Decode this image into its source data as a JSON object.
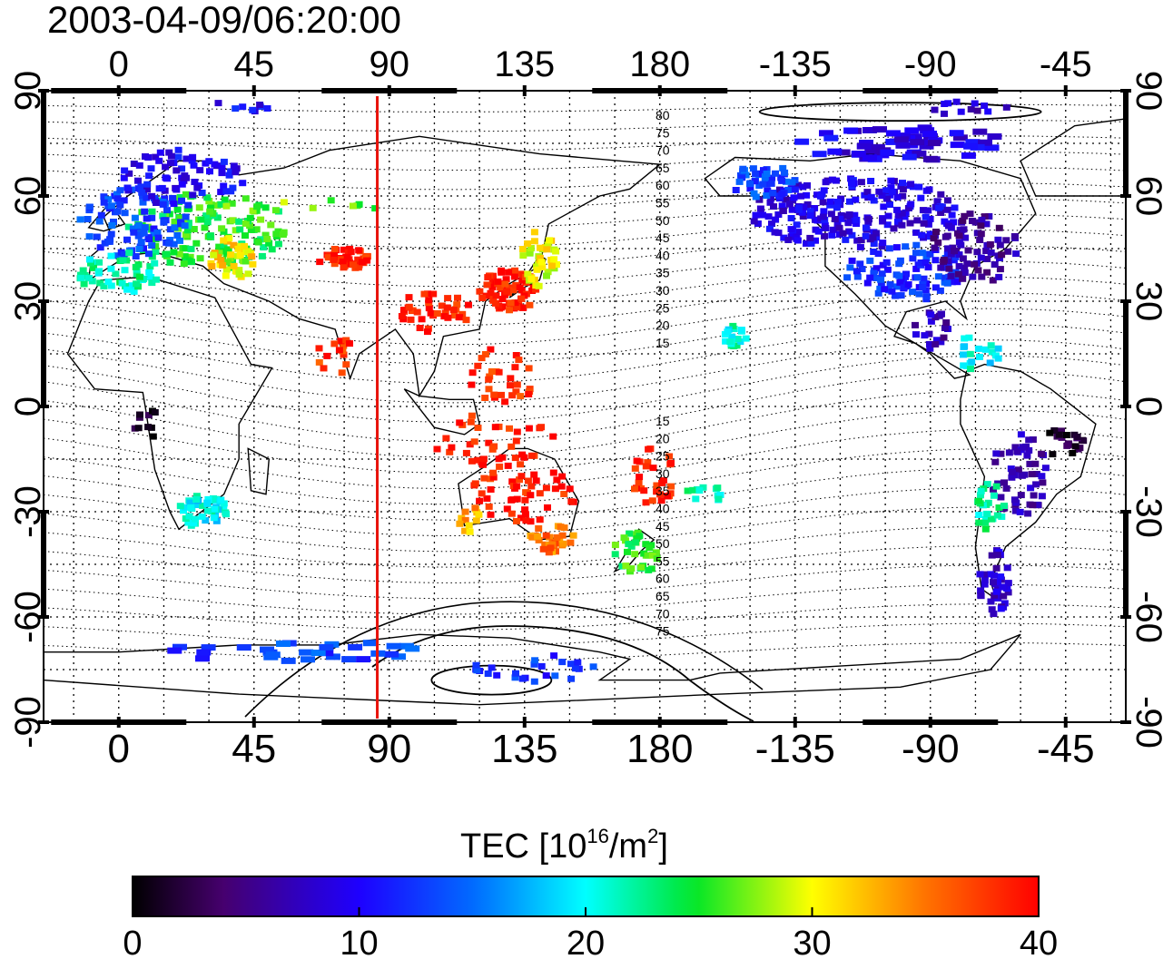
{
  "title": "2003-04-09/06:20:00",
  "lon_ticks": [
    "0",
    "45",
    "90",
    "135",
    "180",
    "-135",
    "-90",
    "-45"
  ],
  "lat_ticks_left": [
    "90",
    "60",
    "30",
    "0",
    "-30",
    "-60",
    "-90"
  ],
  "lat_ticks_right": [
    "90",
    "60",
    "30",
    "0",
    "-30",
    "-60",
    "-90"
  ],
  "contour_labels_north": [
    "80",
    "75",
    "70",
    "65",
    "60",
    "55",
    "50",
    "45",
    "40",
    "35",
    "30",
    "25",
    "20",
    "15"
  ],
  "contour_labels_south": [
    "15",
    "20",
    "25",
    "30",
    "35",
    "40",
    "45",
    "50",
    "55",
    "60",
    "65",
    "70",
    "75"
  ],
  "colorbar": {
    "label_main": "TEC  [10",
    "label_sup1": "16",
    "label_mid": "/m",
    "label_sup2": "2",
    "label_end": "]",
    "ticks": [
      "0",
      "10",
      "20",
      "30",
      "40"
    ],
    "min": 0,
    "max": 40
  },
  "terminator_longitude": 86,
  "colors": {
    "terminator": "#e8130b",
    "frame": "#000000"
  },
  "chart_data": {
    "type": "heatmap",
    "title": "2003-04-09/06:20:00",
    "x_range_deg": [
      -25,
      335
    ],
    "y_range_deg": [
      -90,
      90
    ],
    "colorbar_range": [
      0,
      40
    ],
    "regions": [
      {
        "lon": 30,
        "lat": 50,
        "rx": 28,
        "ry": 11,
        "v": 25,
        "n": 140
      },
      {
        "lon": 5,
        "lat": 52,
        "rx": 18,
        "ry": 10,
        "v": 13,
        "n": 90
      },
      {
        "lon": 20,
        "lat": 65,
        "rx": 22,
        "ry": 8,
        "v": 10,
        "n": 80
      },
      {
        "lon": 0,
        "lat": 38,
        "rx": 14,
        "ry": 6,
        "v": 22,
        "n": 50
      },
      {
        "lon": 38,
        "lat": 42,
        "rx": 8,
        "ry": 6,
        "v": 31,
        "n": 35
      },
      {
        "lon": 75,
        "lat": 42,
        "rx": 9,
        "ry": 3,
        "v": 39,
        "n": 45
      },
      {
        "lon": 60,
        "lat": 55,
        "rx": 30,
        "ry": 4,
        "v": 27,
        "n": 14
      },
      {
        "lon": 130,
        "lat": 33,
        "rx": 10,
        "ry": 6,
        "v": 39,
        "n": 70
      },
      {
        "lon": 140,
        "lat": 42,
        "rx": 6,
        "ry": 8,
        "v": 30,
        "n": 40
      },
      {
        "lon": 105,
        "lat": 27,
        "rx": 12,
        "ry": 6,
        "v": 39,
        "n": 40
      },
      {
        "lon": 128,
        "lat": 10,
        "rx": 12,
        "ry": 10,
        "v": 38,
        "n": 30
      },
      {
        "lon": 72,
        "lat": 15,
        "rx": 6,
        "ry": 6,
        "v": 38,
        "n": 14
      },
      {
        "lon": 125,
        "lat": -10,
        "rx": 20,
        "ry": 8,
        "v": 39,
        "n": 40
      },
      {
        "lon": 135,
        "lat": -25,
        "rx": 18,
        "ry": 8,
        "v": 39,
        "n": 50
      },
      {
        "lon": 144,
        "lat": -38,
        "rx": 8,
        "ry": 4,
        "v": 35,
        "n": 30
      },
      {
        "lon": 116,
        "lat": -32,
        "rx": 4,
        "ry": 4,
        "v": 33,
        "n": 12
      },
      {
        "lon": 172,
        "lat": -42,
        "rx": 8,
        "ry": 6,
        "v": 25,
        "n": 35
      },
      {
        "lon": 178,
        "lat": -20,
        "rx": 8,
        "ry": 8,
        "v": 39,
        "n": 30
      },
      {
        "lon": 195,
        "lat": -25,
        "rx": 6,
        "ry": 3,
        "v": 22,
        "n": 12
      },
      {
        "lon": 205,
        "lat": 20,
        "rx": 4,
        "ry": 3,
        "v": 21,
        "n": 18
      },
      {
        "lon": 245,
        "lat": 55,
        "rx": 35,
        "ry": 10,
        "v": 9,
        "n": 220
      },
      {
        "lon": 262,
        "lat": 38,
        "rx": 20,
        "ry": 8,
        "v": 12,
        "n": 100
      },
      {
        "lon": 285,
        "lat": 45,
        "rx": 15,
        "ry": 10,
        "v": 6,
        "n": 80
      },
      {
        "lon": 260,
        "lat": 75,
        "rx": 35,
        "ry": 5,
        "v": 9,
        "n": 60
      },
      {
        "lon": 215,
        "lat": 64,
        "rx": 12,
        "ry": 5,
        "v": 13,
        "n": 50
      },
      {
        "lon": 270,
        "lat": 22,
        "rx": 6,
        "ry": 6,
        "v": 7,
        "n": 20
      },
      {
        "lon": 285,
        "lat": 15,
        "rx": 8,
        "ry": 5,
        "v": 20,
        "n": 20
      },
      {
        "lon": 300,
        "lat": -20,
        "rx": 10,
        "ry": 12,
        "v": 7,
        "n": 55
      },
      {
        "lon": 290,
        "lat": -30,
        "rx": 5,
        "ry": 8,
        "v": 22,
        "n": 25
      },
      {
        "lon": 292,
        "lat": -50,
        "rx": 6,
        "ry": 10,
        "v": 8,
        "n": 40
      },
      {
        "lon": 315,
        "lat": -10,
        "rx": 6,
        "ry": 6,
        "v": 2,
        "n": 20
      },
      {
        "lon": 28,
        "lat": -30,
        "rx": 8,
        "ry": 5,
        "v": 20,
        "n": 45
      },
      {
        "lon": 10,
        "lat": -5,
        "rx": 5,
        "ry": 4,
        "v": 1,
        "n": 10
      },
      {
        "lon": 60,
        "lat": -70,
        "rx": 45,
        "ry": 3,
        "v": 13,
        "n": 30
      },
      {
        "lon": 140,
        "lat": -75,
        "rx": 25,
        "ry": 4,
        "v": 12,
        "n": 25
      },
      {
        "lon": 40,
        "lat": 85,
        "rx": 10,
        "ry": 2,
        "v": 10,
        "n": 8
      },
      {
        "lon": 280,
        "lat": 85,
        "rx": 20,
        "ry": 2,
        "v": 8,
        "n": 12
      }
    ]
  }
}
